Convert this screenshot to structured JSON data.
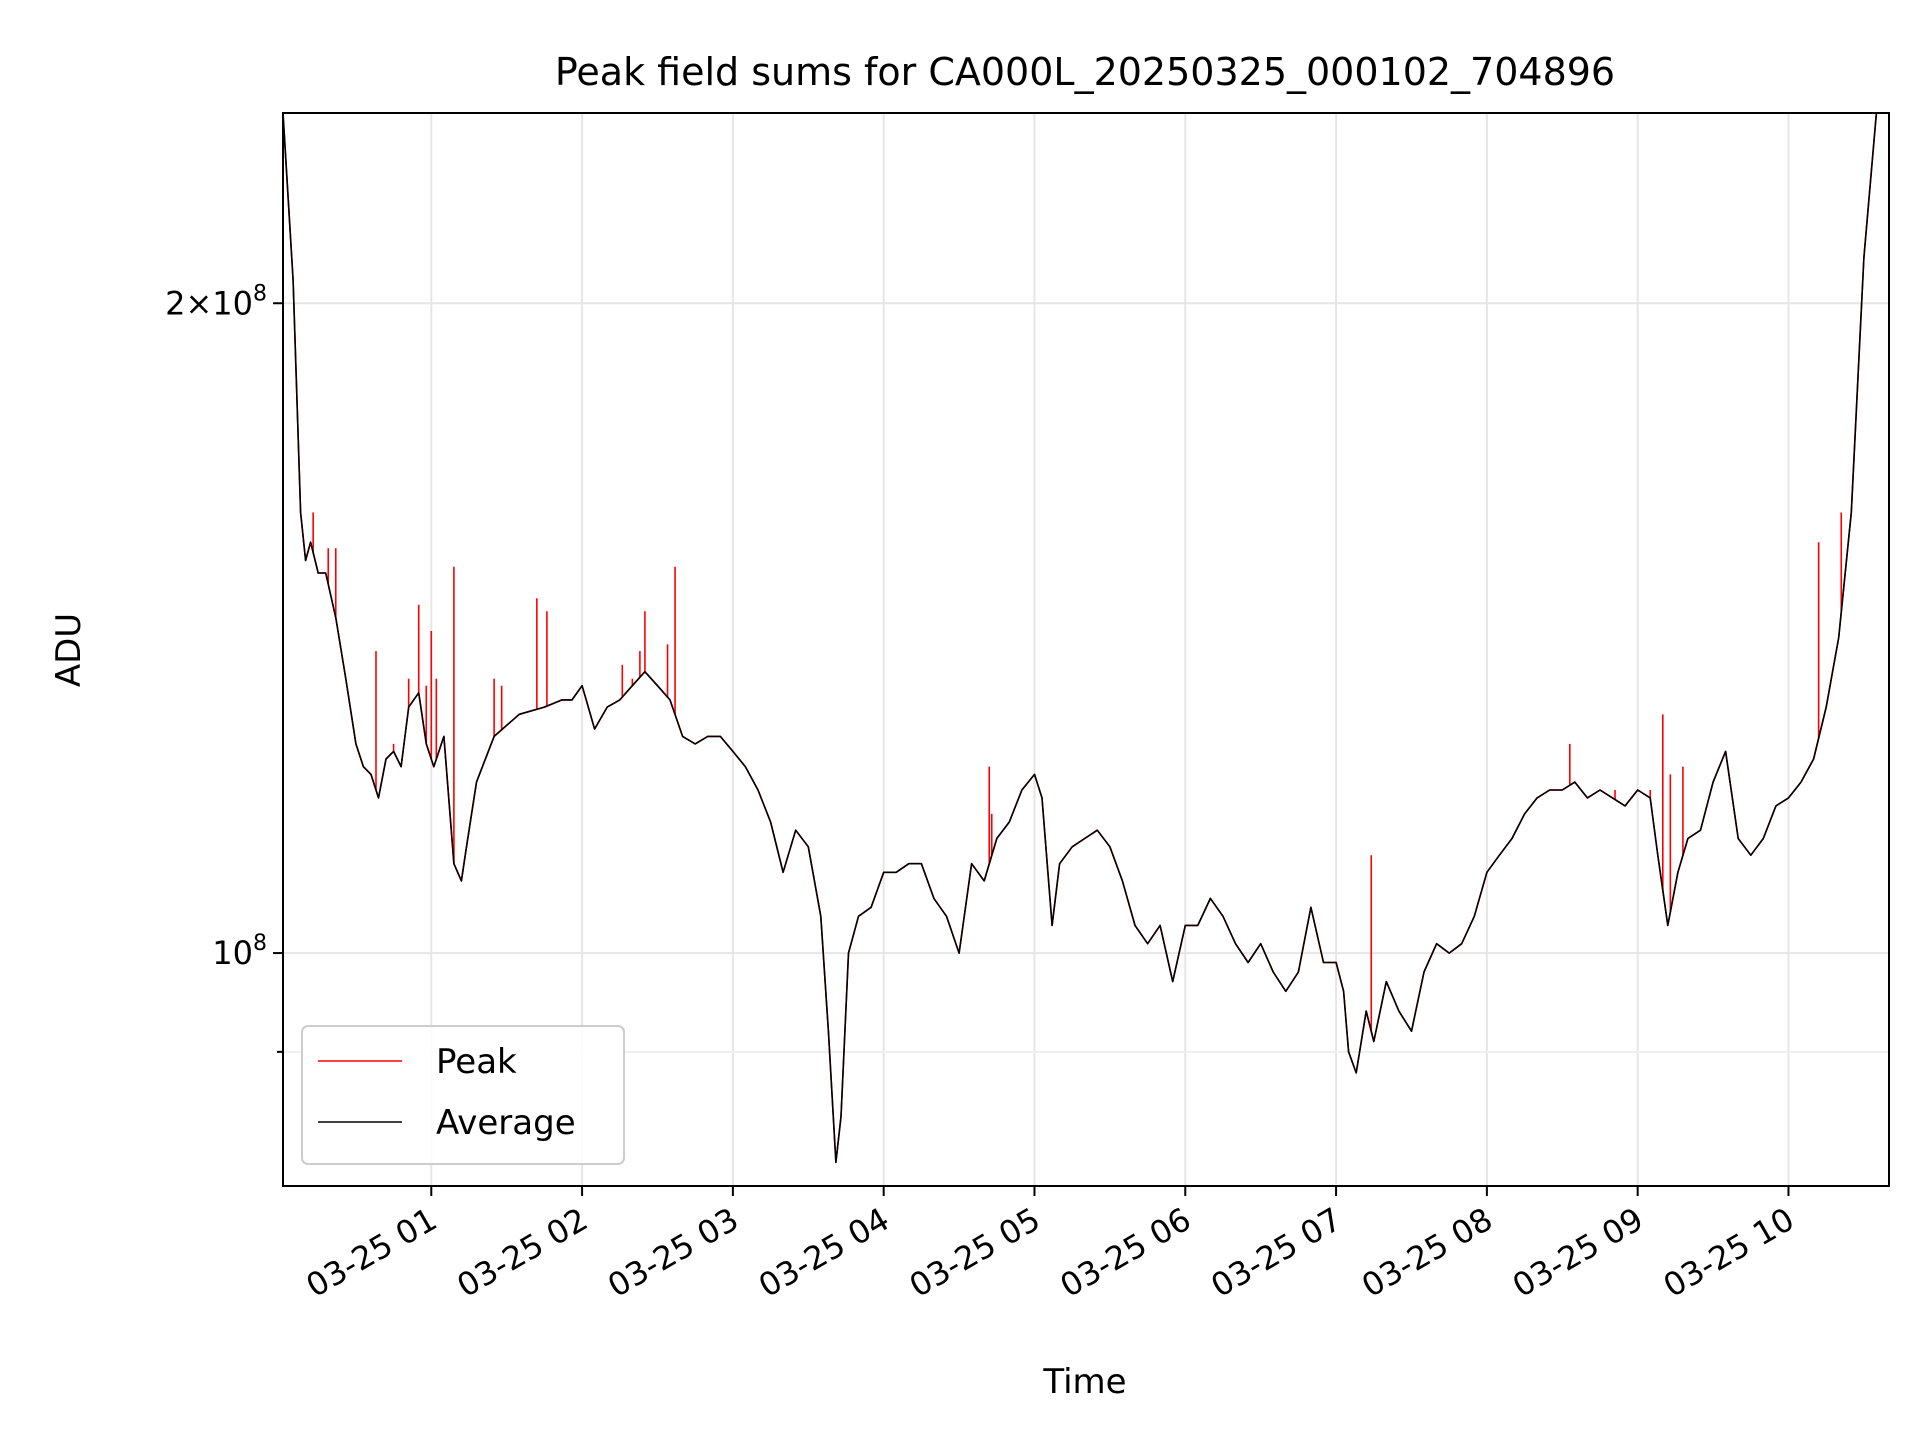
{
  "chart_data": {
    "type": "line",
    "title": "Peak field sums for CA000L_20250325_000102_704896",
    "xlabel": "Time",
    "ylabel": "ADU",
    "yscale": "log",
    "ylim": [
      78000000,
      245000000
    ],
    "xlim": [
      "03-25 00:01",
      "03-25 10:40"
    ],
    "grid": true,
    "legend_position": "lower-left",
    "x_ticks": [
      "03-25 01",
      "03-25 02",
      "03-25 03",
      "03-25 04",
      "03-25 05",
      "03-25 06",
      "03-25 07",
      "03-25 08",
      "03-25 09",
      "03-25 10"
    ],
    "y_ticks": [
      {
        "value": 100000000,
        "base": "10",
        "exp": "8",
        "mant": ""
      },
      {
        "value": 200000000,
        "base": "10",
        "exp": "8",
        "mant": "2"
      }
    ],
    "series": [
      {
        "name": "Average",
        "color": "#000000",
        "x": [
          "03-25 00:01",
          "03-25 00:05",
          "03-25 00:08",
          "03-25 00:10",
          "03-25 00:12",
          "03-25 00:15",
          "03-25 00:18",
          "03-25 00:22",
          "03-25 00:26",
          "03-25 00:30",
          "03-25 00:33",
          "03-25 00:36",
          "03-25 00:39",
          "03-25 00:42",
          "03-25 00:45",
          "03-25 00:48",
          "03-25 00:51",
          "03-25 00:55",
          "03-25 00:58",
          "03-25 01:01",
          "03-25 01:05",
          "03-25 01:09",
          "03-25 01:12",
          "03-25 01:14",
          "03-25 01:18",
          "03-25 01:25",
          "03-25 01:35",
          "03-25 01:45",
          "03-25 01:52",
          "03-25 01:56",
          "03-25 02:00",
          "03-25 02:05",
          "03-25 02:10",
          "03-25 02:15",
          "03-25 02:20",
          "03-25 02:25",
          "03-25 02:30",
          "03-25 02:35",
          "03-25 02:40",
          "03-25 02:45",
          "03-25 02:50",
          "03-25 02:55",
          "03-25 03:00",
          "03-25 03:05",
          "03-25 03:10",
          "03-25 03:15",
          "03-25 03:20",
          "03-25 03:25",
          "03-25 03:30",
          "03-25 03:35",
          "03-25 03:38",
          "03-25 03:41",
          "03-25 03:43",
          "03-25 03:46",
          "03-25 03:50",
          "03-25 03:55",
          "03-25 04:00",
          "03-25 04:05",
          "03-25 04:10",
          "03-25 04:15",
          "03-25 04:20",
          "03-25 04:25",
          "03-25 04:30",
          "03-25 04:35",
          "03-25 04:40",
          "03-25 04:45",
          "03-25 04:50",
          "03-25 04:55",
          "03-25 05:00",
          "03-25 05:03",
          "03-25 05:07",
          "03-25 05:10",
          "03-25 05:15",
          "03-25 05:20",
          "03-25 05:25",
          "03-25 05:30",
          "03-25 05:35",
          "03-25 05:40",
          "03-25 05:45",
          "03-25 05:50",
          "03-25 05:55",
          "03-25 06:00",
          "03-25 06:05",
          "03-25 06:10",
          "03-25 06:15",
          "03-25 06:20",
          "03-25 06:25",
          "03-25 06:30",
          "03-25 06:35",
          "03-25 06:40",
          "03-25 06:45",
          "03-25 06:50",
          "03-25 06:55",
          "03-25 07:00",
          "03-25 07:03",
          "03-25 07:05",
          "03-25 07:08",
          "03-25 07:12",
          "03-25 07:15",
          "03-25 07:20",
          "03-25 07:25",
          "03-25 07:30",
          "03-25 07:35",
          "03-25 07:40",
          "03-25 07:45",
          "03-25 07:50",
          "03-25 07:55",
          "03-25 08:00",
          "03-25 08:05",
          "03-25 08:10",
          "03-25 08:15",
          "03-25 08:20",
          "03-25 08:25",
          "03-25 08:30",
          "03-25 08:35",
          "03-25 08:40",
          "03-25 08:45",
          "03-25 08:50",
          "03-25 08:55",
          "03-25 09:00",
          "03-25 09:05",
          "03-25 09:08",
          "03-25 09:12",
          "03-25 09:16",
          "03-25 09:20",
          "03-25 09:25",
          "03-25 09:30",
          "03-25 09:35",
          "03-25 09:40",
          "03-25 09:45",
          "03-25 09:50",
          "03-25 09:55",
          "03-25 10:00",
          "03-25 10:05",
          "03-25 10:10",
          "03-25 10:15",
          "03-25 10:20",
          "03-25 10:25",
          "03-25 10:30",
          "03-25 10:35",
          "03-25 10:40"
        ],
        "y": [
          250000000,
          205000000,
          160000000,
          152000000,
          155000000,
          150000000,
          150000000,
          143000000,
          134000000,
          125000000,
          122000000,
          121000000,
          118000000,
          123000000,
          124000000,
          122000000,
          130000000,
          132000000,
          125000000,
          122000000,
          126000000,
          110000000,
          108000000,
          112000000,
          120000000,
          126000000,
          129000000,
          130000000,
          131000000,
          131000000,
          133000000,
          127000000,
          130000000,
          131000000,
          133000000,
          135000000,
          133000000,
          131000000,
          126000000,
          125000000,
          126000000,
          126000000,
          124000000,
          122000000,
          119000000,
          115000000,
          109000000,
          114000000,
          112000000,
          104000000,
          92000000,
          80000000,
          84000000,
          100000000,
          104000000,
          105000000,
          109000000,
          109000000,
          110000000,
          110000000,
          106000000,
          104000000,
          100000000,
          110000000,
          108000000,
          113000000,
          115000000,
          119000000,
          121000000,
          118000000,
          103000000,
          110000000,
          112000000,
          113000000,
          114000000,
          112000000,
          108000000,
          103000000,
          101000000,
          103000000,
          97000000,
          103000000,
          103000000,
          106000000,
          104000000,
          101000000,
          99000000,
          101000000,
          98000000,
          96000000,
          98000000,
          105000000,
          99000000,
          99000000,
          96000000,
          90000000,
          88000000,
          94000000,
          91000000,
          97000000,
          94000000,
          92000000,
          98000000,
          101000000,
          100000000,
          101000000,
          104000000,
          109000000,
          111000000,
          113000000,
          116000000,
          118000000,
          119000000,
          119000000,
          120000000,
          118000000,
          119000000,
          118000000,
          117000000,
          119000000,
          118000000,
          111000000,
          103000000,
          109000000,
          113000000,
          114000000,
          120000000,
          124000000,
          113000000,
          111000000,
          113000000,
          117000000,
          118000000,
          120000000,
          123000000,
          130000000,
          140000000,
          160000000,
          210000000,
          245000000,
          250000000
        ]
      },
      {
        "name": "Peak",
        "color": "#ff0000",
        "spikes": [
          {
            "x": "03-25 00:13",
            "y": 160000000
          },
          {
            "x": "03-25 00:19",
            "y": 154000000
          },
          {
            "x": "03-25 00:22",
            "y": 154000000
          },
          {
            "x": "03-25 00:38",
            "y": 138000000
          },
          {
            "x": "03-25 00:45",
            "y": 125000000
          },
          {
            "x": "03-25 00:51",
            "y": 134000000
          },
          {
            "x": "03-25 00:55",
            "y": 145000000
          },
          {
            "x": "03-25 00:58",
            "y": 133000000
          },
          {
            "x": "03-25 01:00",
            "y": 141000000
          },
          {
            "x": "03-25 01:02",
            "y": 134000000
          },
          {
            "x": "03-25 01:09",
            "y": 151000000
          },
          {
            "x": "03-25 01:25",
            "y": 134000000
          },
          {
            "x": "03-25 01:28",
            "y": 133000000
          },
          {
            "x": "03-25 01:42",
            "y": 146000000
          },
          {
            "x": "03-25 01:46",
            "y": 144000000
          },
          {
            "x": "03-25 02:16",
            "y": 136000000
          },
          {
            "x": "03-25 02:20",
            "y": 134000000
          },
          {
            "x": "03-25 02:23",
            "y": 138000000
          },
          {
            "x": "03-25 02:25",
            "y": 144000000
          },
          {
            "x": "03-25 02:34",
            "y": 139000000
          },
          {
            "x": "03-25 02:37",
            "y": 151000000
          },
          {
            "x": "03-25 04:42",
            "y": 122000000
          },
          {
            "x": "03-25 04:43",
            "y": 116000000
          },
          {
            "x": "03-25 07:14",
            "y": 111000000
          },
          {
            "x": "03-25 08:33",
            "y": 125000000
          },
          {
            "x": "03-25 08:51",
            "y": 119000000
          },
          {
            "x": "03-25 09:05",
            "y": 119000000
          },
          {
            "x": "03-25 09:10",
            "y": 129000000
          },
          {
            "x": "03-25 09:13",
            "y": 121000000
          },
          {
            "x": "03-25 09:18",
            "y": 122000000
          },
          {
            "x": "03-25 10:12",
            "y": 155000000
          },
          {
            "x": "03-25 10:21",
            "y": 160000000
          }
        ]
      }
    ],
    "legend": [
      {
        "name": "Peak",
        "color": "#ff0000"
      },
      {
        "name": "Average",
        "color": "#000000"
      }
    ]
  }
}
